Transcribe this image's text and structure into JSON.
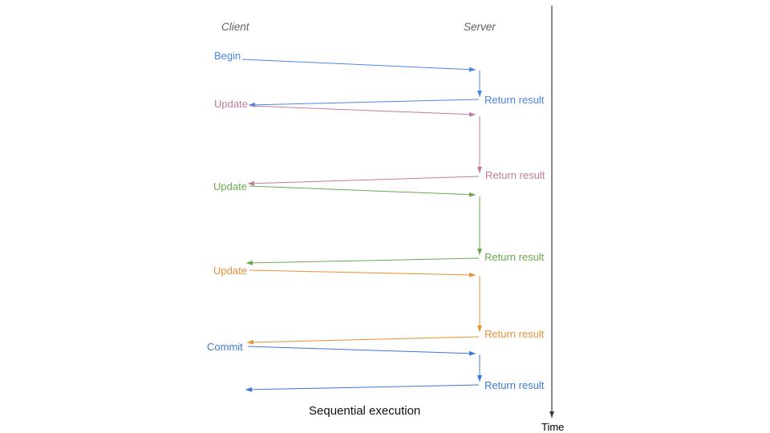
{
  "header": {
    "client_label": "Client",
    "server_label": "Server"
  },
  "operations": [
    {
      "name": "begin",
      "label": "Begin",
      "return_label": "Return result",
      "color": "#4a86e8"
    },
    {
      "name": "update-1",
      "label": "Update",
      "return_label": "Return result",
      "color": "#c27ba0"
    },
    {
      "name": "update-2",
      "label": "Update",
      "return_label": "Return result",
      "color": "#6aa84f"
    },
    {
      "name": "update-3",
      "label": "Update",
      "return_label": "Return result",
      "color": "#e69138"
    },
    {
      "name": "commit",
      "label": "Commit",
      "return_label": "Return result",
      "color": "#3c78d8"
    }
  ],
  "caption": "Sequential execution",
  "time_axis": {
    "label": "Time",
    "color": "#3d3d3d"
  },
  "colors": {
    "background": "#ffffff",
    "header_text": "#5f5f5f",
    "caption_text": "#111111",
    "time_label_text": "#000000"
  }
}
